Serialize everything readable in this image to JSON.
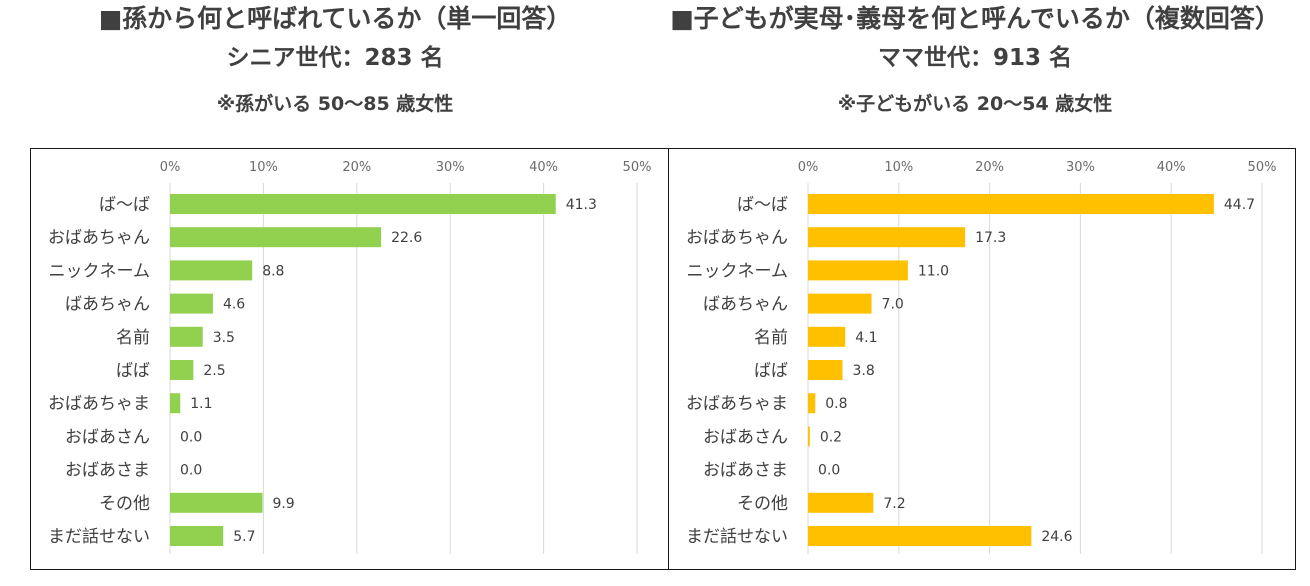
{
  "chart_data": [
    {
      "type": "bar",
      "orientation": "horizontal",
      "heading": "■孫から何と呼ばれているか（単一回答）",
      "subheading": "シニア世代：283 名",
      "note": "※孫がいる 50～85 歳女性",
      "xlim": [
        0,
        50
      ],
      "ticks": [
        "0%",
        "10%",
        "20%",
        "30%",
        "40%",
        "50%"
      ],
      "tick_values": [
        0,
        10,
        20,
        30,
        40,
        50
      ],
      "color": "#92D050",
      "categories": [
        "ば～ば",
        "おばあちゃん",
        "ニックネーム",
        "ばあちゃん",
        "名前",
        "ばば",
        "おばあちゃま",
        "おばあさん",
        "おばあさま",
        "その他",
        "まだ話せない"
      ],
      "values": [
        41.3,
        22.6,
        8.8,
        4.6,
        3.5,
        2.5,
        1.1,
        0.0,
        0.0,
        9.9,
        5.7
      ],
      "value_labels": [
        "41.3",
        "22.6",
        "8.8",
        "4.6",
        "3.5",
        "2.5",
        "1.1",
        "0.0",
        "0.0",
        "9.9",
        "5.7"
      ]
    },
    {
      "type": "bar",
      "orientation": "horizontal",
      "heading": "■子どもが実母･義母を何と呼んでいるか（複数回答）",
      "subheading": "ママ世代：913 名",
      "note": "※子どもがいる 20～54 歳女性",
      "xlim": [
        0,
        50
      ],
      "ticks": [
        "0%",
        "10%",
        "20%",
        "30%",
        "40%",
        "50%"
      ],
      "tick_values": [
        0,
        10,
        20,
        30,
        40,
        50
      ],
      "color": "#FFC000",
      "categories": [
        "ば～ば",
        "おばあちゃん",
        "ニックネーム",
        "ばあちゃん",
        "名前",
        "ばば",
        "おばあちゃま",
        "おばあさん",
        "おばあさま",
        "その他",
        "まだ話せない"
      ],
      "values": [
        44.7,
        17.3,
        11.0,
        7.0,
        4.1,
        3.8,
        0.8,
        0.2,
        0.0,
        7.2,
        24.6
      ],
      "value_labels": [
        "44.7",
        "17.3",
        "11.0",
        "7.0",
        "4.1",
        "3.8",
        "0.8",
        "0.2",
        "0.0",
        "7.2",
        "24.6"
      ]
    }
  ]
}
